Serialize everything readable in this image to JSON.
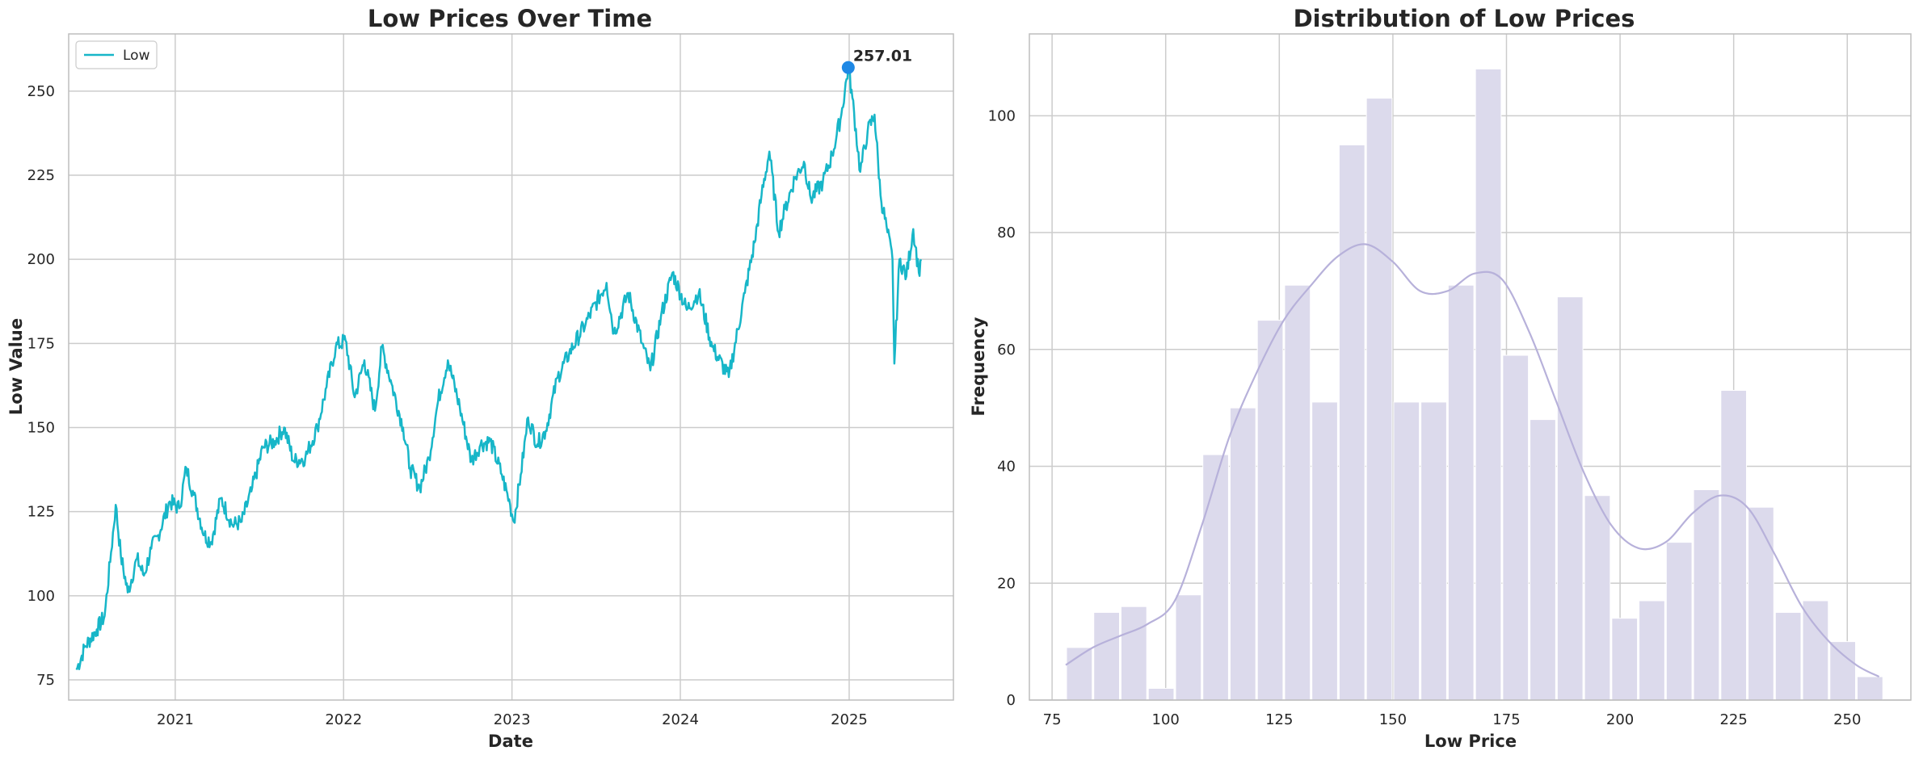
{
  "colors": {
    "line": "#17b6c8",
    "peak_marker": "#1e88e5",
    "hist_bar": "#dcdaec",
    "kde": "#b7b1da",
    "grid": "#cccccc",
    "frame": "#bdbdbd"
  },
  "chart_data": [
    {
      "type": "line",
      "title": "Low Prices Over Time",
      "xlabel": "Date",
      "ylabel": "Low Value",
      "x_ticks": [
        "2021",
        "2022",
        "2023",
        "2024",
        "2025"
      ],
      "y_ticks": [
        75,
        100,
        125,
        150,
        175,
        200,
        225,
        250
      ],
      "xlim": [
        "2020-05-15",
        "2025-08-15"
      ],
      "ylim": [
        69,
        267
      ],
      "grid": true,
      "legend": {
        "placement": "top-left",
        "entries": [
          "Low"
        ]
      },
      "series": [
        {
          "name": "Low",
          "points": [
            [
              "2020-06-01",
              78
            ],
            [
              "2020-06-20",
              85
            ],
            [
              "2020-07-15",
              90
            ],
            [
              "2020-08-01",
              94
            ],
            [
              "2020-08-15",
              113
            ],
            [
              "2020-08-25",
              127
            ],
            [
              "2020-09-05",
              112
            ],
            [
              "2020-09-20",
              101
            ],
            [
              "2020-10-10",
              111
            ],
            [
              "2020-10-25",
              106
            ],
            [
              "2020-11-10",
              114
            ],
            [
              "2020-11-25",
              118
            ],
            [
              "2020-12-20",
              128
            ],
            [
              "2021-01-10",
              126
            ],
            [
              "2021-01-25",
              138
            ],
            [
              "2021-02-10",
              130
            ],
            [
              "2021-03-05",
              118
            ],
            [
              "2021-03-20",
              116
            ],
            [
              "2021-04-10",
              129
            ],
            [
              "2021-05-05",
              121
            ],
            [
              "2021-05-25",
              122
            ],
            [
              "2021-06-15",
              131
            ],
            [
              "2021-07-10",
              144
            ],
            [
              "2021-08-05",
              146
            ],
            [
              "2021-08-25",
              150
            ],
            [
              "2021-09-15",
              140
            ],
            [
              "2021-10-10",
              141
            ],
            [
              "2021-11-05",
              150
            ],
            [
              "2021-11-25",
              162
            ],
            [
              "2021-12-15",
              174
            ],
            [
              "2022-01-05",
              176
            ],
            [
              "2022-01-25",
              159
            ],
            [
              "2022-02-15",
              170
            ],
            [
              "2022-03-10",
              155
            ],
            [
              "2022-03-25",
              174
            ],
            [
              "2022-04-15",
              163
            ],
            [
              "2022-05-10",
              150
            ],
            [
              "2022-05-25",
              138
            ],
            [
              "2022-06-15",
              132
            ],
            [
              "2022-07-05",
              141
            ],
            [
              "2022-07-25",
              158
            ],
            [
              "2022-08-15",
              170
            ],
            [
              "2022-09-10",
              156
            ],
            [
              "2022-10-05",
              140
            ],
            [
              "2022-10-25",
              145
            ],
            [
              "2022-11-15",
              146
            ],
            [
              "2022-12-10",
              136
            ],
            [
              "2022-12-28",
              127
            ],
            [
              "2023-01-05",
              122
            ],
            [
              "2023-01-20",
              136
            ],
            [
              "2023-02-05",
              153
            ],
            [
              "2023-02-25",
              145
            ],
            [
              "2023-03-15",
              149
            ],
            [
              "2023-04-10",
              165
            ],
            [
              "2023-05-05",
              172
            ],
            [
              "2023-06-10",
              181
            ],
            [
              "2023-07-25",
              193
            ],
            [
              "2023-08-10",
              178
            ],
            [
              "2023-09-10",
              190
            ],
            [
              "2023-10-10",
              175
            ],
            [
              "2023-10-28",
              167
            ],
            [
              "2023-11-20",
              183
            ],
            [
              "2023-12-15",
              196
            ],
            [
              "2024-01-15",
              185
            ],
            [
              "2024-02-10",
              190
            ],
            [
              "2024-03-10",
              174
            ],
            [
              "2024-04-15",
              165
            ],
            [
              "2024-05-20",
              190
            ],
            [
              "2024-06-10",
              205
            ],
            [
              "2024-06-25",
              219
            ],
            [
              "2024-07-12",
              232
            ],
            [
              "2024-08-01",
              208
            ],
            [
              "2024-08-15",
              215
            ],
            [
              "2024-09-05",
              224
            ],
            [
              "2024-09-25",
              229
            ],
            [
              "2024-10-10",
              218
            ],
            [
              "2024-11-05",
              223
            ],
            [
              "2024-11-25",
              231
            ],
            [
              "2024-12-15",
              243
            ],
            [
              "2024-12-30",
              257
            ],
            [
              "2025-01-08",
              248
            ],
            [
              "2025-01-25",
              226
            ],
            [
              "2025-02-10",
              238
            ],
            [
              "2025-02-25",
              243
            ],
            [
              "2025-03-10",
              219
            ],
            [
              "2025-03-25",
              208
            ],
            [
              "2025-04-05",
              200
            ],
            [
              "2025-04-09",
              169
            ],
            [
              "2025-04-20",
              200
            ],
            [
              "2025-05-05",
              195
            ],
            [
              "2025-05-20",
              209
            ],
            [
              "2025-06-01",
              196
            ],
            [
              "2025-06-06",
              200
            ]
          ]
        }
      ],
      "annotations": [
        {
          "text": "257.01",
          "x": "2024-12-30",
          "y": 257.01
        }
      ]
    },
    {
      "type": "histogram",
      "title": "Distribution of Low Prices",
      "xlabel": "Low Price",
      "ylabel": "Frequency",
      "x_ticks": [
        75,
        100,
        125,
        150,
        175,
        200,
        225,
        250
      ],
      "y_ticks": [
        0,
        20,
        40,
        60,
        80,
        100
      ],
      "xlim": [
        70,
        264
      ],
      "ylim": [
        0,
        114
      ],
      "grid": true,
      "bin_start": 78,
      "bin_width": 6,
      "values": [
        9,
        15,
        16,
        2,
        18,
        42,
        50,
        65,
        71,
        51,
        95,
        103,
        51,
        51,
        71,
        108,
        59,
        48,
        69,
        35,
        14,
        17,
        27,
        36,
        53,
        33,
        15,
        17,
        10,
        4
      ],
      "kde": {
        "x": [
          78,
          84,
          90,
          96,
          102,
          108,
          114,
          120,
          126,
          132,
          138,
          144,
          150,
          156,
          162,
          168,
          174,
          180,
          186,
          192,
          198,
          204,
          210,
          216,
          222,
          228,
          234,
          240,
          246,
          252,
          257
        ],
        "y": [
          6,
          9,
          11,
          13,
          17,
          30,
          45,
          56,
          65,
          71,
          76,
          78,
          75,
          70,
          70,
          73,
          72,
          63,
          51,
          39,
          30,
          26,
          27,
          32,
          35,
          33,
          25,
          16,
          10,
          6,
          4
        ]
      }
    }
  ]
}
